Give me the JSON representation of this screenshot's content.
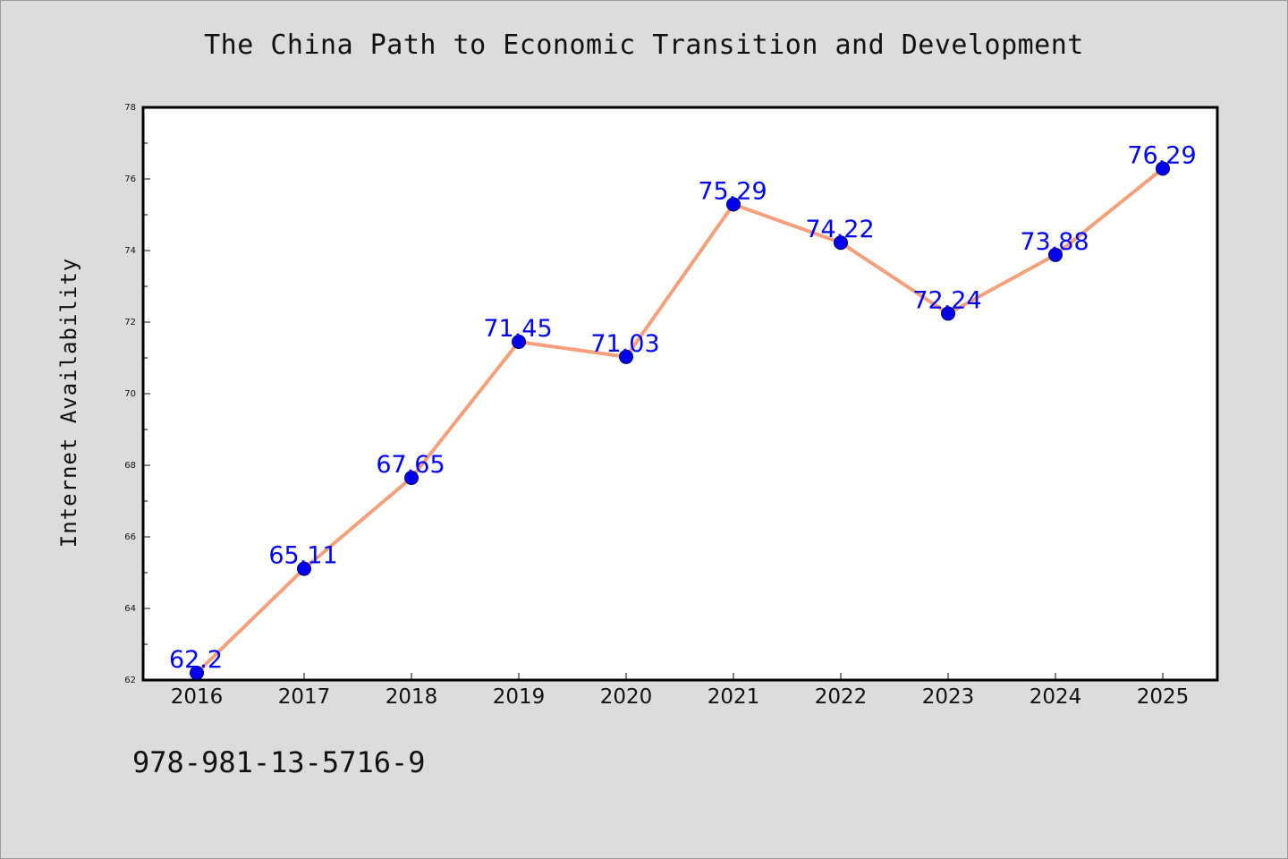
{
  "chart_data": {
    "type": "line",
    "title": "The China Path to Economic Transition and Development",
    "ylabel": "Internet Availability",
    "xlabel": "",
    "categories": [
      "2016",
      "2017",
      "2018",
      "2019",
      "2020",
      "2021",
      "2022",
      "2023",
      "2024",
      "2025"
    ],
    "values": [
      62.2,
      65.11,
      67.65,
      71.45,
      71.03,
      75.29,
      74.22,
      72.24,
      73.88,
      76.29
    ],
    "data_labels": [
      "62.2",
      "65.11",
      "67.65",
      "71.45",
      "71.03",
      "75.29",
      "74.22",
      "72.24",
      "73.88",
      "76.29"
    ],
    "ylim": [
      62,
      78
    ],
    "yticks": [
      62,
      64,
      66,
      68,
      70,
      72,
      74,
      76,
      78
    ],
    "grid": false,
    "line_color": "#f5a07a",
    "marker_color": "#0000ee",
    "label_color": "#0000ff"
  },
  "footer": {
    "isbn": "978-981-13-5716-9"
  }
}
